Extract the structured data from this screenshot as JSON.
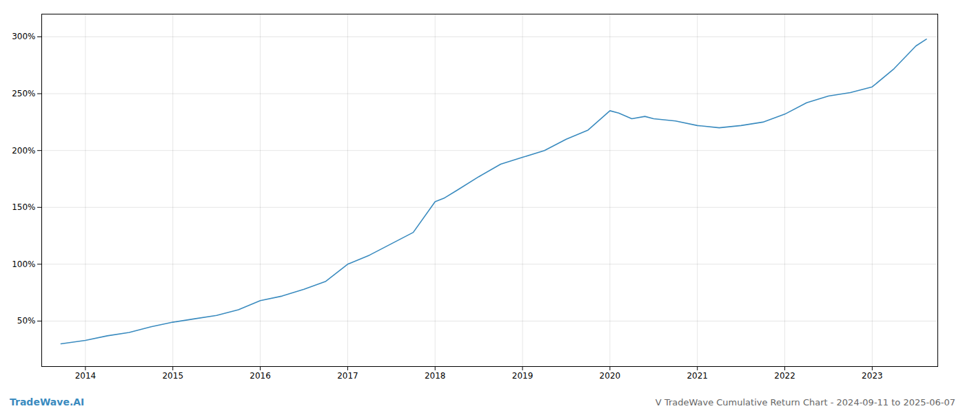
{
  "chart_data": {
    "type": "line",
    "title": "V TradeWave Cumulative Return Chart - 2024-09-11 to 2025-06-07",
    "annotations": [
      {
        "text": "TradeWave.AI",
        "color": "#3a8bbf"
      }
    ],
    "color": "#3a8bbf",
    "grid": true,
    "x": [
      2013.72,
      2014.0,
      2014.25,
      2014.5,
      2014.75,
      2015.0,
      2015.25,
      2015.5,
      2015.75,
      2016.0,
      2016.25,
      2016.5,
      2016.75,
      2017.0,
      2017.25,
      2017.5,
      2017.75,
      2018.0,
      2018.1,
      2018.25,
      2018.5,
      2018.75,
      2019.0,
      2019.25,
      2019.5,
      2019.75,
      2020.0,
      2020.1,
      2020.25,
      2020.4,
      2020.5,
      2020.75,
      2021.0,
      2021.25,
      2021.5,
      2021.75,
      2022.0,
      2022.25,
      2022.5,
      2022.75,
      2023.0,
      2023.25,
      2023.5,
      2023.62
    ],
    "values": [
      30,
      33,
      37,
      40,
      45,
      49,
      52,
      55,
      60,
      68,
      72,
      78,
      85,
      100,
      108,
      118,
      128,
      155,
      158,
      165,
      177,
      188,
      194,
      200,
      210,
      218,
      235,
      233,
      228,
      230,
      228,
      226,
      222,
      220,
      222,
      225,
      232,
      242,
      248,
      251,
      256,
      272,
      292,
      298
    ],
    "xlim": [
      2013.5,
      2023.75
    ],
    "ylim": [
      10,
      320
    ],
    "xticks": [
      2014,
      2015,
      2016,
      2017,
      2018,
      2019,
      2020,
      2021,
      2022,
      2023
    ],
    "yticks": [
      {
        "value": 50,
        "label": "50%"
      },
      {
        "value": 100,
        "label": "100%"
      },
      {
        "value": 150,
        "label": "150%"
      },
      {
        "value": 200,
        "label": "200%"
      },
      {
        "value": 250,
        "label": "250%"
      },
      {
        "value": 300,
        "label": "300%"
      }
    ]
  }
}
